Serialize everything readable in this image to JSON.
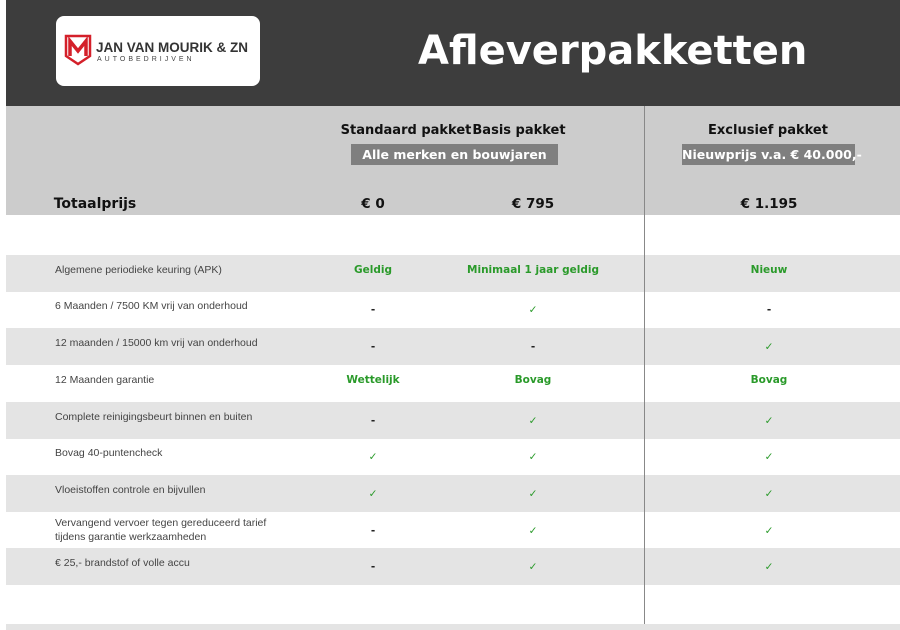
{
  "brand": {
    "name": "JAN VAN MOURIK & ZN",
    "subtitle": "AUTOBEDRIJVEN",
    "logo_color": "#d4202a"
  },
  "title": "Afleverpakketten",
  "packages": [
    {
      "name": "Standaard pakket",
      "price": "€ 0"
    },
    {
      "name": "Basis pakket",
      "price": "€ 795"
    },
    {
      "name": "Exclusief pakket",
      "price": "€ 1.195"
    }
  ],
  "tags": {
    "standard_basis": "Alle merken en bouwjaren",
    "exclusief": "Nieuwprijs v.a. € 40.000,-"
  },
  "total_label": "Totaalprijs",
  "rows": [
    {
      "label": "Algemene periodieke keuring (APK)",
      "values": [
        "Geldig",
        "Minimaal 1 jaar geldig",
        "Nieuw"
      ]
    },
    {
      "label": "6 Maanden / 7500 KM vrij van onderhoud",
      "values": [
        "-",
        "✓",
        "-"
      ]
    },
    {
      "label": "12 maanden / 15000 km vrij van onderhoud",
      "values": [
        "-",
        "-",
        "✓"
      ]
    },
    {
      "label": "12 Maanden  garantie",
      "values": [
        "Wettelijk",
        "Bovag",
        "Bovag"
      ]
    },
    {
      "label": "Complete reinigingsbeurt binnen en buiten",
      "values": [
        "-",
        "✓",
        "✓"
      ]
    },
    {
      "label": "Bovag 40-puntencheck",
      "values": [
        "✓",
        "✓",
        "✓"
      ]
    },
    {
      "label": "Vloeistoffen controle en bijvullen",
      "values": [
        "✓",
        "✓",
        "✓"
      ]
    },
    {
      "label": "Vervangend vervoer tegen gereduceerd tarief tijdens garantie werkzaamheden",
      "values": [
        "-",
        "✓",
        "✓"
      ]
    },
    {
      "label": "€ 25,- brandstof of  volle accu",
      "values": [
        "-",
        "✓",
        "✓"
      ]
    }
  ],
  "colors": {
    "header": "#3d3d3d",
    "price_band": "#cccccc",
    "tag": "#7f7f7f",
    "accent_green": "#2a9a2a",
    "row_alt": "#e4e4e4"
  }
}
